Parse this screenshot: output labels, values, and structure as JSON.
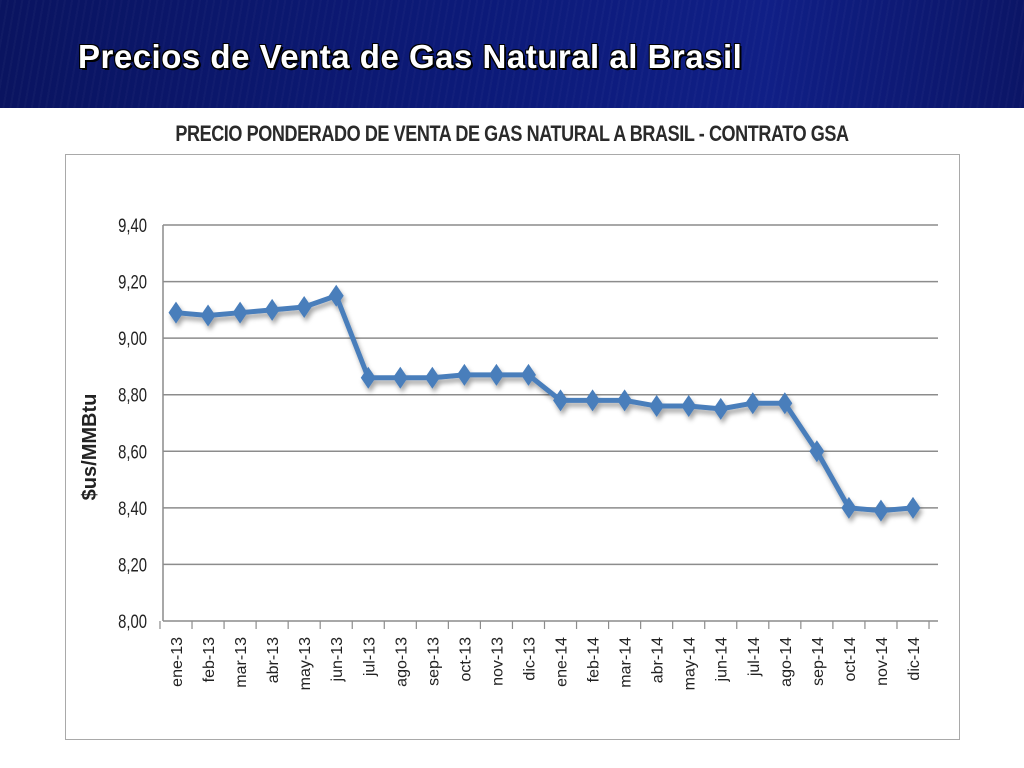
{
  "slide": {
    "title": "Precios de Venta de Gas Natural al Brasil"
  },
  "chart_data": {
    "type": "line",
    "title": "PRECIO PONDERADO DE VENTA DE GAS NATURAL A BRASIL - CONTRATO GSA",
    "xlabel": "",
    "ylabel": "$us/MMBtu",
    "categories": [
      "ene-13",
      "feb-13",
      "mar-13",
      "abr-13",
      "may-13",
      "jun-13",
      "jul-13",
      "ago-13",
      "sep-13",
      "oct-13",
      "nov-13",
      "dic-13",
      "ene-14",
      "feb-14",
      "mar-14",
      "abr-14",
      "may-14",
      "jun-14",
      "jul-14",
      "ago-14",
      "sep-14",
      "oct-14",
      "nov-14",
      "dic-14"
    ],
    "series": [
      {
        "values": [
          9.09,
          9.08,
          9.09,
          9.1,
          9.11,
          9.15,
          8.86,
          8.86,
          8.86,
          8.87,
          8.87,
          8.87,
          8.78,
          8.78,
          8.78,
          8.76,
          8.76,
          8.75,
          8.77,
          8.77,
          8.6,
          8.4,
          8.39,
          8.4
        ],
        "color": "#4a7ebb"
      }
    ],
    "ylim": [
      8.0,
      9.4
    ],
    "yticks": [
      "8,00",
      "8,20",
      "8,40",
      "8,60",
      "8,80",
      "9,00",
      "9,20",
      "9,40"
    ],
    "grid": true,
    "marker": "diamond"
  }
}
